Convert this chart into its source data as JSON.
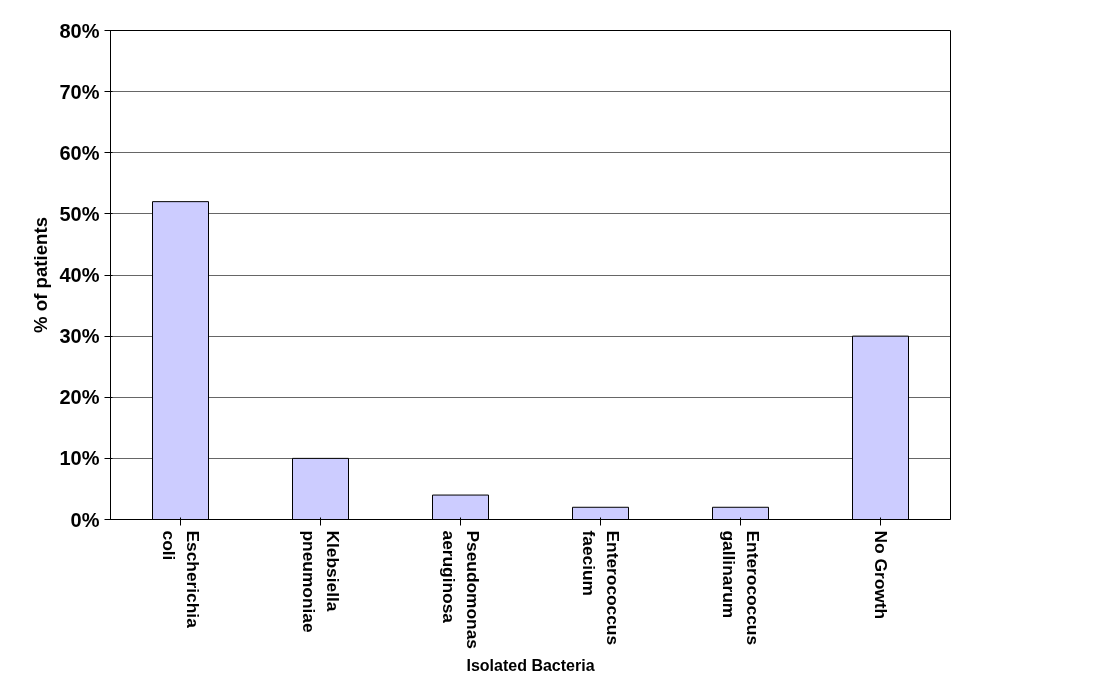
{
  "chart_data": {
    "type": "bar",
    "categories": [
      "Escherichia coli",
      "Klebsiella pneumoniae",
      "Pseudomonas aeruginosa",
      "Enterococcus faecium",
      "Enterococcus gallinarum",
      "No Growth"
    ],
    "values": [
      52,
      10,
      4,
      2,
      2,
      30
    ],
    "color": "#ccccff",
    "xlabel": "Isolated Bacteria",
    "ylabel": "% of patients",
    "ylim": [
      0,
      80
    ],
    "yticks": [
      {
        "value": 0,
        "label": "0%"
      },
      {
        "value": 10,
        "label": "10%"
      },
      {
        "value": 20,
        "label": "20%"
      },
      {
        "value": 30,
        "label": "30%"
      },
      {
        "value": 40,
        "label": "40%"
      },
      {
        "value": 50,
        "label": "50%"
      },
      {
        "value": 60,
        "label": "60%"
      },
      {
        "value": 70,
        "label": "70%"
      },
      {
        "value": 80,
        "label": "80%"
      }
    ],
    "grid": "y"
  }
}
